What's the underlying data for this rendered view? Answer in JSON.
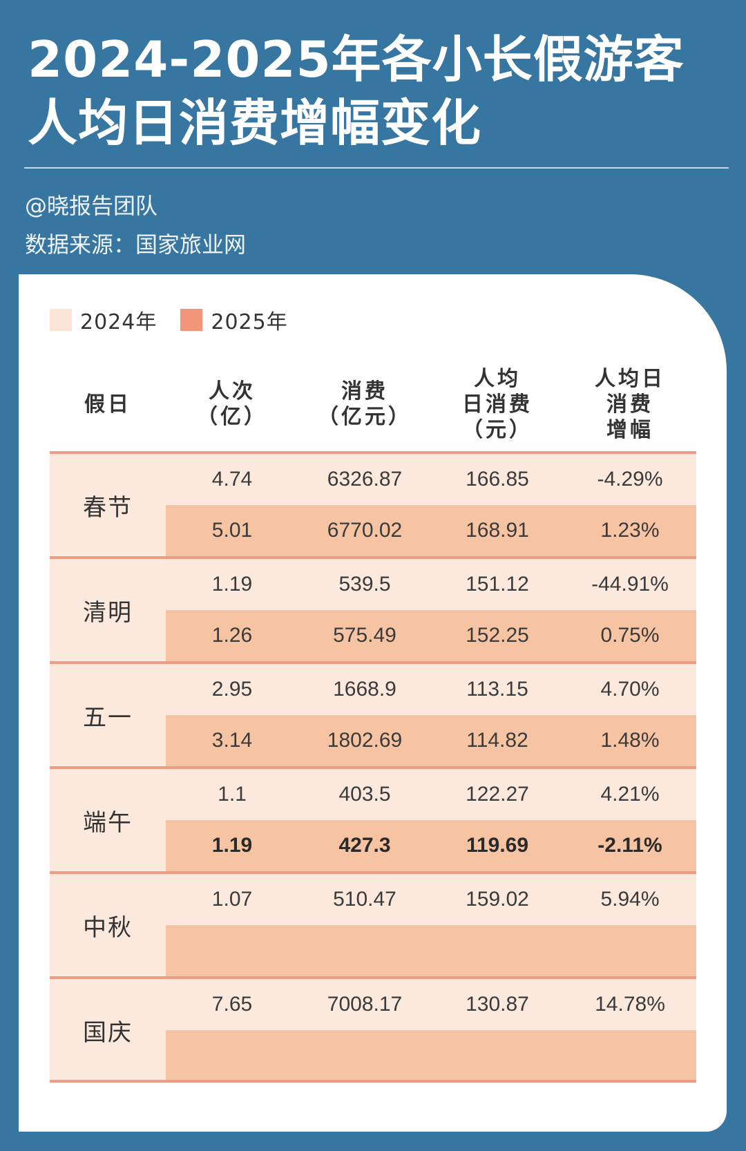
{
  "header": {
    "title_line1": "2024-2025年各小长假游客",
    "title_line2": "人均日消费增幅变化",
    "author": "@晓报告团队",
    "source": "数据来源：国家旅业网"
  },
  "colors": {
    "background": "#3676a0",
    "row_2024": "#fce9de",
    "row_2025": "#f6c4a2",
    "swatch_2024": "#fbe3d5",
    "swatch_2025": "#f0957a",
    "divider": "#ef9c84"
  },
  "legend": [
    {
      "label": "2024年"
    },
    {
      "label": "2025年"
    }
  ],
  "chart_data": {
    "type": "table",
    "columns": [
      "假日",
      "人次\n（亿）",
      "消费\n（亿元）",
      "人均\n日消费\n（元）",
      "人均日\n消费\n增幅"
    ],
    "series": [
      {
        "name": "2024年"
      },
      {
        "name": "2025年"
      }
    ],
    "groups": [
      {
        "holiday": "春节",
        "rows": [
          {
            "year": "2024年",
            "values": [
              "4.74",
              "6326.87",
              "166.85",
              "-4.29%"
            ]
          },
          {
            "year": "2025年",
            "values": [
              "5.01",
              "6770.02",
              "168.91",
              "1.23%"
            ]
          }
        ]
      },
      {
        "holiday": "清明",
        "rows": [
          {
            "year": "2024年",
            "values": [
              "1.19",
              "539.5",
              "151.12",
              "-44.91%"
            ]
          },
          {
            "year": "2025年",
            "values": [
              "1.26",
              "575.49",
              "152.25",
              "0.75%"
            ]
          }
        ]
      },
      {
        "holiday": "五一",
        "rows": [
          {
            "year": "2024年",
            "values": [
              "2.95",
              "1668.9",
              "113.15",
              "4.70%"
            ]
          },
          {
            "year": "2025年",
            "values": [
              "3.14",
              "1802.69",
              "114.82",
              "1.48%"
            ]
          }
        ]
      },
      {
        "holiday": "端午",
        "rows": [
          {
            "year": "2024年",
            "values": [
              "1.1",
              "403.5",
              "122.27",
              "4.21%"
            ]
          },
          {
            "year": "2025年",
            "values": [
              "1.19",
              "427.3",
              "119.69",
              "-2.11%"
            ],
            "bold": true
          }
        ]
      },
      {
        "holiday": "中秋",
        "rows": [
          {
            "year": "2024年",
            "values": [
              "1.07",
              "510.47",
              "159.02",
              "5.94%"
            ]
          },
          {
            "year": "2025年",
            "values": [
              "",
              "",
              "",
              ""
            ]
          }
        ]
      },
      {
        "holiday": "国庆",
        "rows": [
          {
            "year": "2024年",
            "values": [
              "7.65",
              "7008.17",
              "130.87",
              "14.78%"
            ]
          },
          {
            "year": "2025年",
            "values": [
              "",
              "",
              "",
              ""
            ]
          }
        ]
      }
    ]
  }
}
